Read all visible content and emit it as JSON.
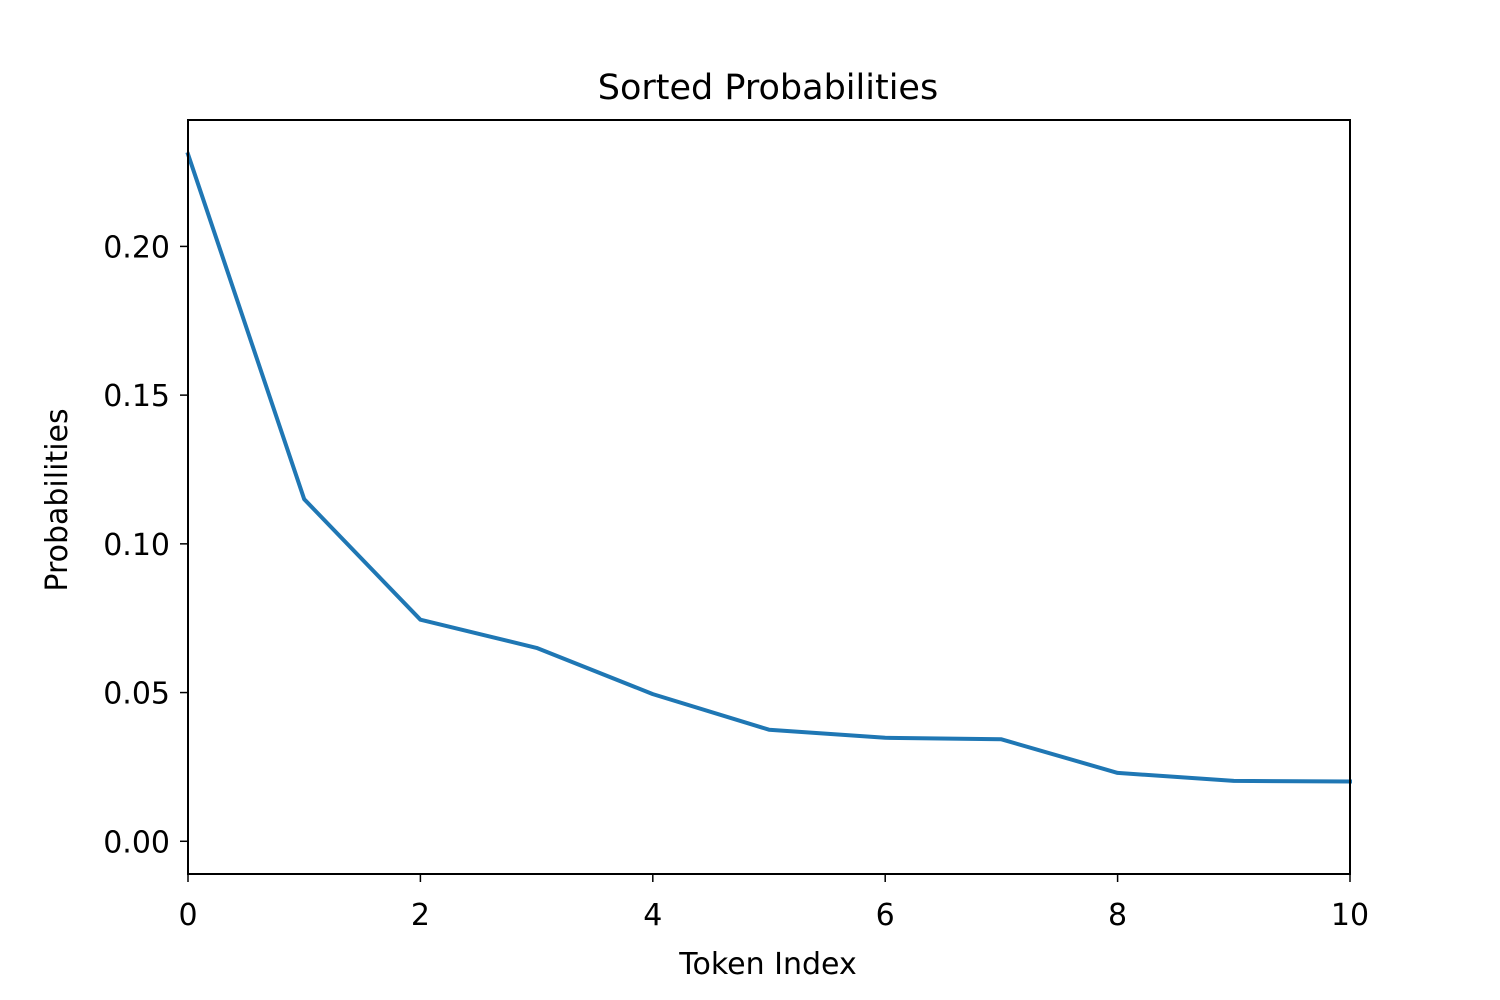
{
  "chart_data": {
    "type": "line",
    "title": "Sorted Probabilities",
    "xlabel": "Token Index",
    "ylabel": "Probabilities",
    "xlim": [
      0,
      10
    ],
    "ylim": [
      -0.011,
      0.2425
    ],
    "xticks": [
      0,
      2,
      4,
      6,
      8,
      10
    ],
    "xtick_labels": [
      "0",
      "2",
      "4",
      "6",
      "8",
      "10"
    ],
    "yticks": [
      0.0,
      0.05,
      0.1,
      0.15,
      0.2
    ],
    "ytick_labels": [
      "0.00",
      "0.05",
      "0.10",
      "0.15",
      "0.20"
    ],
    "grid": false,
    "series": [
      {
        "color": "#1f77b4",
        "x": [
          0,
          1,
          2,
          3,
          4,
          5,
          6,
          7,
          8,
          9,
          10
        ],
        "values": [
          0.231,
          0.115,
          0.0745,
          0.065,
          0.0495,
          0.0375,
          0.0348,
          0.0343,
          0.023,
          0.0203,
          0.0201
        ]
      }
    ]
  }
}
